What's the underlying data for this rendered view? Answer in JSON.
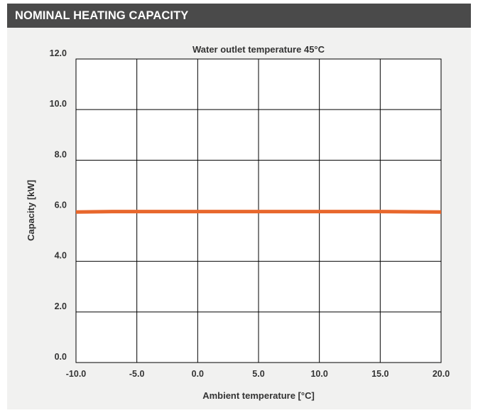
{
  "header": {
    "title": "NOMINAL HEATING CAPACITY"
  },
  "colors": {
    "header_bg": "#4a4a4a",
    "panel_bg": "#f1f1f0",
    "series": "#e8672c"
  },
  "chart_data": {
    "type": "line",
    "title": "Water outlet temperature 45°C",
    "xlabel": "Ambient temperature [°C]",
    "ylabel": "Capacity [kW]",
    "xlim": [
      -10.0,
      20.0
    ],
    "ylim": [
      0.0,
      12.0
    ],
    "xticks": [
      "-10.0",
      "-5.0",
      "0.0",
      "5.0",
      "10.0",
      "15.0",
      "20.0"
    ],
    "yticks": [
      "0.0",
      "2.0",
      "4.0",
      "6.0",
      "8.0",
      "10.0",
      "12.0"
    ],
    "grid": true,
    "series": [
      {
        "color": "#e8672c",
        "x": [
          -10.0,
          -7.0,
          15.0,
          20.0
        ],
        "y": [
          5.95,
          5.97,
          5.97,
          5.95
        ]
      }
    ]
  }
}
